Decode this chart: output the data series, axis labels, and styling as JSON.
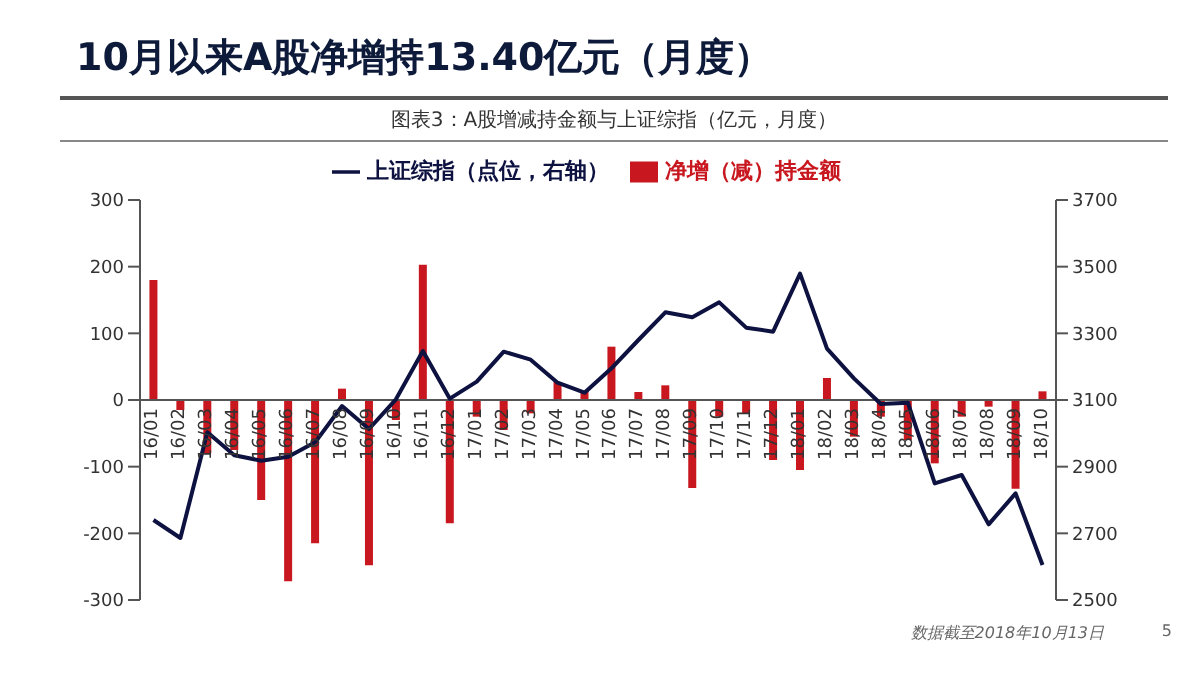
{
  "chart_data": {
    "type": "bar",
    "title": "10月以来A股净增持13.40亿元（月度）",
    "subtitle": "图表3：A股增减持金额与上证综指（亿元，月度）",
    "categories": [
      "16/01",
      "16/02",
      "16/03",
      "16/04",
      "16/05",
      "16/06",
      "16/07",
      "16/08",
      "16/09",
      "16/10",
      "16/11",
      "16/12",
      "17/01",
      "17/02",
      "17/03",
      "17/04",
      "17/05",
      "17/06",
      "17/07",
      "17/08",
      "17/09",
      "17/10",
      "17/11",
      "17/12",
      "18/01",
      "18/02",
      "18/03",
      "18/04",
      "18/05",
      "18/06",
      "18/07",
      "18/08",
      "18/09",
      "18/10"
    ],
    "series": [
      {
        "name": "净增（减）持金额",
        "color": "#c8171e",
        "values": [
          180,
          -15,
          -80,
          -75,
          -150,
          -272,
          -215,
          17,
          -248,
          -30,
          203,
          -185,
          -25,
          -45,
          -20,
          27,
          14,
          80,
          12,
          22,
          -132,
          -25,
          -20,
          -90,
          -105,
          33,
          -55,
          -25,
          -60,
          -95,
          -25,
          -10,
          -133,
          13
        ]
      },
      {
        "name": "上证综指（点位，右轴）",
        "type": "line",
        "axis": "y2",
        "color": "#0d1240",
        "values": [
          2740,
          2686,
          3003,
          2934,
          2918,
          2930,
          2973,
          3082,
          3013,
          3102,
          3247,
          3104,
          3155,
          3245,
          3221,
          3152,
          3122,
          3195,
          3280,
          3363,
          3348,
          3393,
          3317,
          3305,
          3479,
          3254,
          3165,
          3088,
          3092,
          2850,
          2875,
          2727,
          2820,
          2605
        ]
      }
    ],
    "ylim": [
      -300,
      300
    ],
    "yticks": [
      -300,
      -200,
      -100,
      0,
      100,
      200,
      300
    ],
    "y2lim": [
      2500,
      3700
    ],
    "y2ticks": [
      2500,
      2700,
      2900,
      3100,
      3300,
      3500,
      3700
    ],
    "grid": false,
    "legend": "top",
    "marker": "none",
    "line_style": "solid",
    "annotations": [
      "数据截至2018年10月13日",
      "5"
    ]
  }
}
